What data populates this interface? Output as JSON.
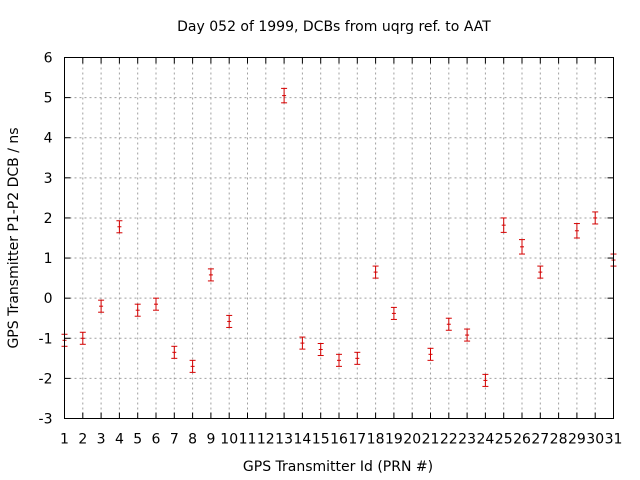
{
  "chart_data": {
    "type": "scatter",
    "title": "Day 052 of 1999, DCBs from uqrg ref. to AAT",
    "xlabel": "GPS Transmitter Id (PRN #)",
    "ylabel": "GPS Transmitter P1-P2 DCB / ns",
    "xlim": [
      1,
      31
    ],
    "ylim": [
      -3,
      6
    ],
    "x_ticks": [
      "1",
      "2",
      "3",
      "4",
      "5",
      "6",
      "7",
      "8",
      "9",
      "10",
      "11",
      "12",
      "13",
      "14",
      "15",
      "16",
      "17",
      "18",
      "19",
      "20",
      "21",
      "22",
      "23",
      "24",
      "25",
      "26",
      "27",
      "28",
      "29",
      "30",
      "31"
    ],
    "y_ticks": [
      "-3",
      "-2",
      "-1",
      "0",
      "1",
      "2",
      "3",
      "4",
      "5",
      "6"
    ],
    "grid": true,
    "series_color": "#d40000",
    "points": [
      {
        "x": 1,
        "y": -1.05,
        "err": 0.15
      },
      {
        "x": 2,
        "y": -1.0,
        "err": 0.15
      },
      {
        "x": 3,
        "y": -0.2,
        "err": 0.15
      },
      {
        "x": 4,
        "y": 1.78,
        "err": 0.15
      },
      {
        "x": 5,
        "y": -0.3,
        "err": 0.15
      },
      {
        "x": 6,
        "y": -0.15,
        "err": 0.15
      },
      {
        "x": 7,
        "y": -1.35,
        "err": 0.15
      },
      {
        "x": 8,
        "y": -1.7,
        "err": 0.15
      },
      {
        "x": 9,
        "y": 0.58,
        "err": 0.15
      },
      {
        "x": 10,
        "y": -0.58,
        "err": 0.15
      },
      {
        "x": 13,
        "y": 5.05,
        "err": 0.18
      },
      {
        "x": 14,
        "y": -1.12,
        "err": 0.15
      },
      {
        "x": 15,
        "y": -1.28,
        "err": 0.15
      },
      {
        "x": 16,
        "y": -1.55,
        "err": 0.15
      },
      {
        "x": 17,
        "y": -1.5,
        "err": 0.15
      },
      {
        "x": 18,
        "y": 0.65,
        "err": 0.15
      },
      {
        "x": 19,
        "y": -0.38,
        "err": 0.15
      },
      {
        "x": 21,
        "y": -1.4,
        "err": 0.15
      },
      {
        "x": 22,
        "y": -0.65,
        "err": 0.15
      },
      {
        "x": 23,
        "y": -0.92,
        "err": 0.15
      },
      {
        "x": 24,
        "y": -2.05,
        "err": 0.15
      },
      {
        "x": 25,
        "y": 1.82,
        "err": 0.18
      },
      {
        "x": 26,
        "y": 1.28,
        "err": 0.18
      },
      {
        "x": 27,
        "y": 0.65,
        "err": 0.15
      },
      {
        "x": 29,
        "y": 1.68,
        "err": 0.18
      },
      {
        "x": 30,
        "y": 2.0,
        "err": 0.15
      },
      {
        "x": 31,
        "y": 0.95,
        "err": 0.15
      }
    ]
  }
}
